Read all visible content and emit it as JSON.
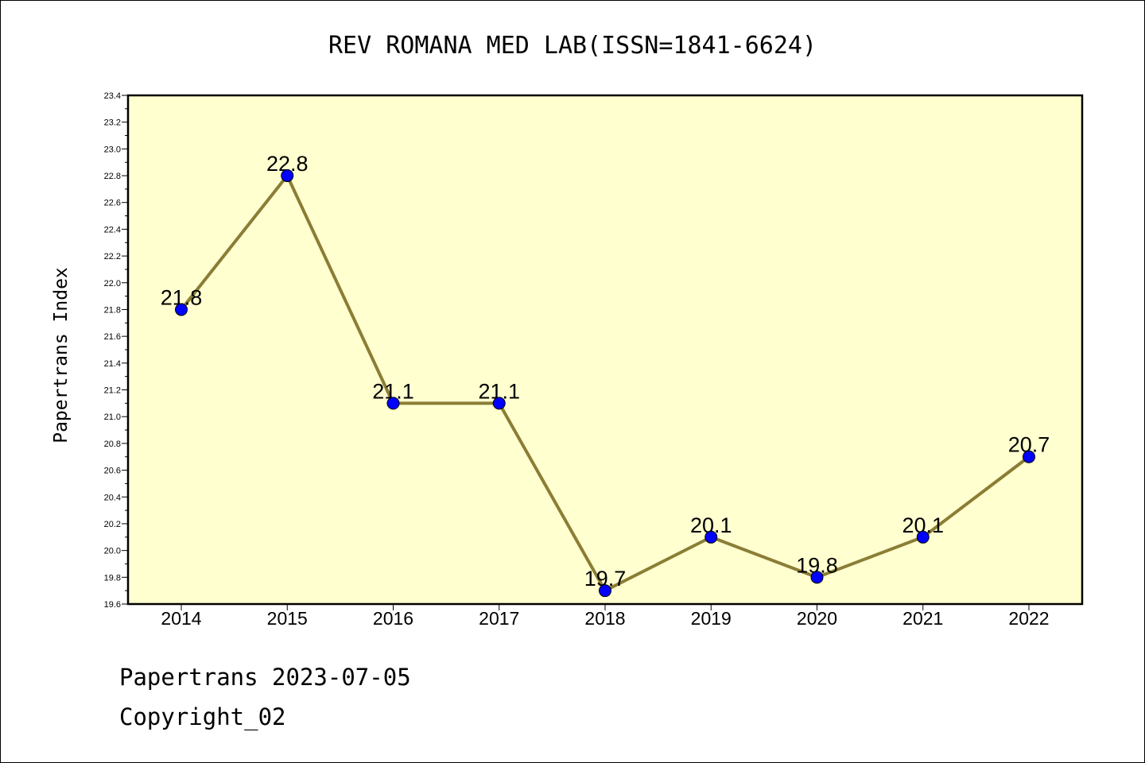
{
  "footer": {
    "line1": "Papertrans 2023-07-05",
    "line2": "Copyright_02"
  },
  "colors": {
    "plot_background": "#ffffd0",
    "line": "#8b7d35",
    "marker": "#0000ff"
  },
  "chart_data": {
    "type": "line",
    "title": "REV ROMANA MED LAB(ISSN=1841-6624)",
    "xlabel": "",
    "ylabel": "Papertrans Index",
    "categories": [
      "2014",
      "2015",
      "2016",
      "2017",
      "2018",
      "2019",
      "2020",
      "2021",
      "2022"
    ],
    "series": [
      {
        "values": [
          21.8,
          22.8,
          21.1,
          21.1,
          19.7,
          20.1,
          19.8,
          20.1,
          20.7
        ],
        "labels": [
          "21.8",
          "22.8",
          "21.1",
          "21.1",
          "19.7",
          "20.1",
          "19.8",
          "20.1",
          "20.7"
        ]
      }
    ],
    "ylim": [
      19.6,
      23.4
    ],
    "yticks": [
      "19.6",
      "19.8",
      "20.0",
      "20.2",
      "20.4",
      "20.6",
      "20.8",
      "21.0",
      "21.2",
      "21.4",
      "21.6",
      "21.8",
      "22.0",
      "22.2",
      "22.4",
      "22.6",
      "22.8",
      "23.0",
      "23.2",
      "23.4"
    ],
    "grid": false,
    "legend": "none"
  }
}
